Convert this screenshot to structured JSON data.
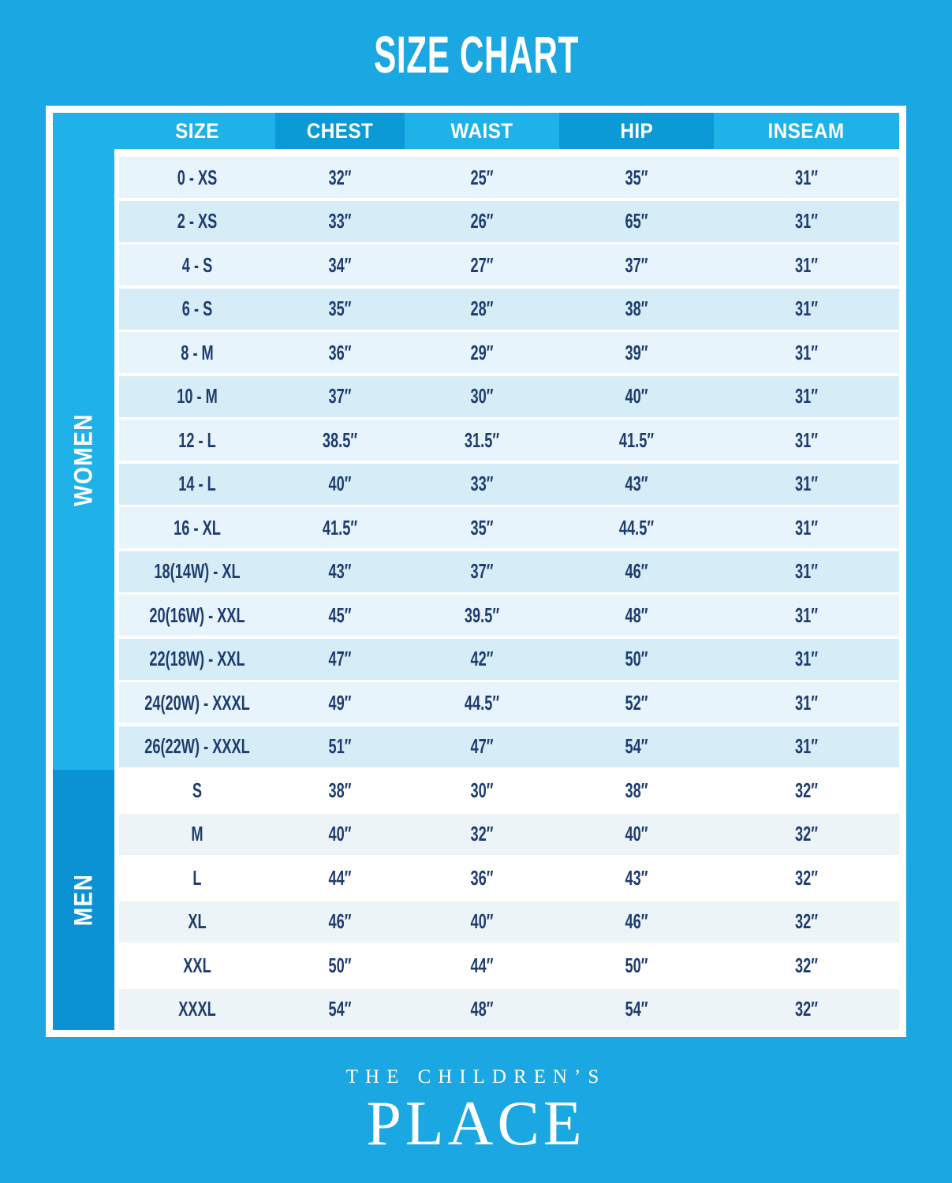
{
  "title": "SIZE CHART",
  "chart_data": {
    "type": "table",
    "title": "SIZE CHART",
    "columns": [
      "SIZE",
      "CHEST",
      "WAIST",
      "HIP",
      "INSEAM"
    ],
    "sections": [
      {
        "label": "WOMEN",
        "rows": [
          [
            "0 - XS",
            "32″",
            "25″",
            "35″",
            "31″"
          ],
          [
            "2 - XS",
            "33″",
            "26″",
            "65″",
            "31″"
          ],
          [
            "4 - S",
            "34″",
            "27″",
            "37″",
            "31″"
          ],
          [
            "6 - S",
            "35″",
            "28″",
            "38″",
            "31″"
          ],
          [
            "8 - M",
            "36″",
            "29″",
            "39″",
            "31″"
          ],
          [
            "10 - M",
            "37″",
            "30″",
            "40″",
            "31″"
          ],
          [
            "12 - L",
            "38.5″",
            "31.5″",
            "41.5″",
            "31″"
          ],
          [
            "14 - L",
            "40″",
            "33″",
            "43″",
            "31″"
          ],
          [
            "16 - XL",
            "41.5″",
            "35″",
            "44.5″",
            "31″"
          ],
          [
            "18(14W) - XL",
            "43″",
            "37″",
            "46″",
            "31″"
          ],
          [
            "20(16W) - XXL",
            "45″",
            "39.5″",
            "48″",
            "31″"
          ],
          [
            "22(18W) - XXL",
            "47″",
            "42″",
            "50″",
            "31″"
          ],
          [
            "24(20W) - XXXL",
            "49″",
            "44.5″",
            "52″",
            "31″"
          ],
          [
            "26(22W) - XXXL",
            "51″",
            "47″",
            "54″",
            "31″"
          ]
        ]
      },
      {
        "label": "MEN",
        "rows": [
          [
            "S",
            "38″",
            "30″",
            "38″",
            "32″"
          ],
          [
            "M",
            "40″",
            "32″",
            "40″",
            "32″"
          ],
          [
            "L",
            "44″",
            "36″",
            "43″",
            "32″"
          ],
          [
            "XL",
            "46″",
            "40″",
            "46″",
            "32″"
          ],
          [
            "XXL",
            "50″",
            "44″",
            "50″",
            "32″"
          ],
          [
            "XXXL",
            "54″",
            "48″",
            "54″",
            "32″"
          ]
        ]
      }
    ]
  },
  "logo": {
    "line1": "THE CHILDREN’S",
    "line2": "PLACE"
  },
  "colors": {
    "background": "#1BA7E2",
    "header_light": "#1FB2E9",
    "header_dark": "#0C9AD7",
    "women_sidebar": "#1FB2E9",
    "men_sidebar": "#0A92D4",
    "women_row_light": "#E7F4FB",
    "women_row_dark": "#D6EDF8",
    "men_row_white": "#FFFFFF",
    "men_row_tint": "#EDF4F8",
    "text_navy": "#1E3C6F",
    "frame_white": "#FFFFFF"
  }
}
